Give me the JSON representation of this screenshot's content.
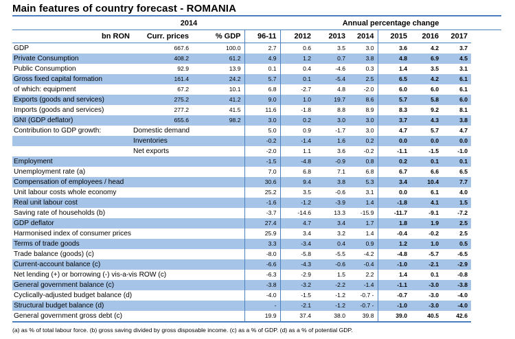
{
  "title": "Main features of country forecast - ROMANIA",
  "header": {
    "year_base": "2014",
    "annual_change": "Annual percentage change",
    "unit": "bn RON",
    "curr_prices": "Curr. prices",
    "pct_gdp": "% GDP",
    "years": [
      "96-11",
      "2012",
      "2013",
      "2014",
      "2015",
      "2016",
      "2017"
    ]
  },
  "rows": [
    {
      "label": "GDP",
      "sub": "",
      "curr": "667.6",
      "pct": "100.0",
      "v": [
        "2.7",
        "0.6",
        "3.5",
        "3.0",
        "3.6",
        "4.2",
        "3.7"
      ],
      "hl": false
    },
    {
      "label": "Private Consumption",
      "sub": "",
      "curr": "408.2",
      "pct": "61.2",
      "v": [
        "4.9",
        "1.2",
        "0.7",
        "3.8",
        "4.8",
        "6.9",
        "4.5"
      ],
      "hl": true
    },
    {
      "label": "Public Consumption",
      "sub": "",
      "curr": "92.9",
      "pct": "13.9",
      "v": [
        "0.1",
        "0.4",
        "-4.6",
        "0.3",
        "1.4",
        "3.5",
        "3.1"
      ],
      "hl": false
    },
    {
      "label": "Gross fixed capital formation",
      "sub": "",
      "curr": "161.4",
      "pct": "24.2",
      "v": [
        "5.7",
        "0.1",
        "-5.4",
        "2.5",
        "6.5",
        "4.2",
        "6.1"
      ],
      "hl": true
    },
    {
      "label": "of which: equipment",
      "sub": "",
      "curr": "67.2",
      "pct": "10.1",
      "v": [
        "6.8",
        "-2.7",
        "4.8",
        "-2.0",
        "6.0",
        "6.0",
        "6.1"
      ],
      "hl": false
    },
    {
      "label": "Exports (goods and services)",
      "sub": "",
      "curr": "275.2",
      "pct": "41.2",
      "v": [
        "9.0",
        "1.0",
        "19.7",
        "8.6",
        "5.7",
        "5.8",
        "6.0"
      ],
      "hl": true
    },
    {
      "label": "Imports (goods and services)",
      "sub": "",
      "curr": "277.2",
      "pct": "41.5",
      "v": [
        "11.6",
        "-1.8",
        "8.8",
        "8.9",
        "8.3",
        "9.2",
        "8.1"
      ],
      "hl": false
    },
    {
      "label": "GNI (GDP deflator)",
      "sub": "",
      "curr": "655.6",
      "pct": "98.2",
      "v": [
        "3.0",
        "0.2",
        "3.0",
        "3.0",
        "3.7",
        "4.3",
        "3.8"
      ],
      "hl": true
    },
    {
      "label": "Contribution to GDP growth:",
      "sub": "Domestic demand",
      "curr": "",
      "pct": "",
      "v": [
        "5.0",
        "0.9",
        "-1.7",
        "3.0",
        "4.7",
        "5.7",
        "4.7"
      ],
      "hl": false
    },
    {
      "label": "",
      "sub": "Inventories",
      "curr": "",
      "pct": "",
      "v": [
        "-0.2",
        "-1.4",
        "1.6",
        "0.2",
        "0.0",
        "0.0",
        "0.0"
      ],
      "hl": true
    },
    {
      "label": "",
      "sub": "Net exports",
      "curr": "",
      "pct": "",
      "v": [
        "-2.0",
        "1.1",
        "3.6",
        "-0.2",
        "-1.1",
        "-1.5",
        "-1.0"
      ],
      "hl": false
    },
    {
      "label": "Employment",
      "sub": "",
      "curr": "",
      "pct": "",
      "v": [
        "-1.5",
        "-4.8",
        "-0.9",
        "0.8",
        "0.2",
        "0.1",
        "0.1"
      ],
      "hl": true
    },
    {
      "label": "Unemployment rate (a)",
      "sub": "",
      "curr": "",
      "pct": "",
      "v": [
        "7.0",
        "6.8",
        "7.1",
        "6.8",
        "6.7",
        "6.6",
        "6.5"
      ],
      "hl": false
    },
    {
      "label": "Compensation of employees / head",
      "sub": "",
      "curr": "",
      "pct": "",
      "v": [
        "30.6",
        "9.4",
        "3.8",
        "5.3",
        "3.4",
        "10.4",
        "7.7"
      ],
      "hl": true
    },
    {
      "label": "Unit labour costs whole economy",
      "sub": "",
      "curr": "",
      "pct": "",
      "v": [
        "25.2",
        "3.5",
        "-0.6",
        "3.1",
        "0.0",
        "6.1",
        "4.0"
      ],
      "hl": false
    },
    {
      "label": "Real unit labour cost",
      "sub": "",
      "curr": "",
      "pct": "",
      "v": [
        "-1.6",
        "-1.2",
        "-3.9",
        "1.4",
        "-1.8",
        "4.1",
        "1.5"
      ],
      "hl": true
    },
    {
      "label": "Saving rate of households (b)",
      "sub": "",
      "curr": "",
      "pct": "",
      "v": [
        "-3.7",
        "-14.6",
        "13.3",
        "-15.9",
        "-11.7",
        "-9.1",
        "-7.2"
      ],
      "hl": false
    },
    {
      "label": "GDP deflator",
      "sub": "",
      "curr": "",
      "pct": "",
      "v": [
        "27.4",
        "4.7",
        "3.4",
        "1.7",
        "1.8",
        "1.9",
        "2.5"
      ],
      "hl": true
    },
    {
      "label": "Harmonised index of consumer prices",
      "sub": "",
      "curr": "",
      "pct": "",
      "v": [
        "25.9",
        "3.4",
        "3.2",
        "1.4",
        "-0.4",
        "-0.2",
        "2.5"
      ],
      "hl": false
    },
    {
      "label": "Terms of trade goods",
      "sub": "",
      "curr": "",
      "pct": "",
      "v": [
        "3.3",
        "-3.4",
        "0.4",
        "0.9",
        "1.2",
        "1.0",
        "0.5"
      ],
      "hl": true
    },
    {
      "label": "Trade balance (goods) (c)",
      "sub": "",
      "curr": "",
      "pct": "",
      "v": [
        "-8.0",
        "-5.8",
        "-5.5",
        "-4.2",
        "-4.8",
        "-5.7",
        "-6.5"
      ],
      "hl": false
    },
    {
      "label": "Current-account balance (c)",
      "sub": "",
      "curr": "",
      "pct": "",
      "v": [
        "-6.6",
        "-4.3",
        "-0.6",
        "-0.4",
        "-1.0",
        "-2.1",
        "-2.9"
      ],
      "hl": true
    },
    {
      "label": "Net lending (+) or borrowing (-) vis-a-vis ROW (c)",
      "sub": "",
      "curr": "",
      "pct": "",
      "v": [
        "-6.3",
        "-2.9",
        "1.5",
        "2.2",
        "1.4",
        "0.1",
        "-0.8"
      ],
      "hl": false
    },
    {
      "label": "General government balance (c)",
      "sub": "",
      "curr": "",
      "pct": "",
      "v": [
        "-3.8",
        "-3.2",
        "-2.2",
        "-1.4",
        "-1.1",
        "-3.0",
        "-3.8"
      ],
      "hl": true
    },
    {
      "label": "Cyclically-adjusted budget balance (d)",
      "sub": "",
      "curr": "",
      "pct": "",
      "v": [
        "-4.0",
        "-1.5",
        "-1.2",
        "-0.7 -",
        "-0.7",
        "-3.0",
        "-4.0"
      ],
      "hl": false
    },
    {
      "label": "Structural budget balance (d)",
      "sub": "",
      "curr": "",
      "pct": "",
      "v": [
        "-",
        "-2.1",
        "-1.2",
        "-0.7 -",
        "-1.0",
        "-3.0",
        "-4.0"
      ],
      "hl": true
    },
    {
      "label": "General government gross debt (c)",
      "sub": "",
      "curr": "",
      "pct": "",
      "v": [
        "19.9",
        "37.4",
        "38.0",
        "39.8",
        "39.0",
        "40.5",
        "42.6"
      ],
      "hl": false
    }
  ],
  "footnote": "(a) as % of total labour force. (b) gross saving divided by gross disposable income. (c) as a % of GDP. (d) as a % of potential GDP."
}
